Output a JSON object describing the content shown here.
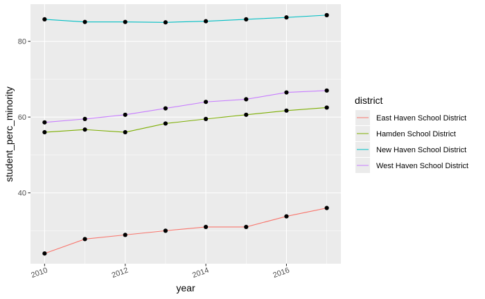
{
  "chart_data": {
    "type": "line",
    "title": "",
    "xlabel": "year",
    "ylabel": "student_perc_minority",
    "x": [
      2010,
      2011,
      2012,
      2013,
      2014,
      2015,
      2016,
      2017
    ],
    "x_ticks": [
      2010,
      2012,
      2014,
      2016
    ],
    "x_tick_labels": [
      "2010",
      "2012",
      "2014",
      "2016"
    ],
    "y_ticks": [
      40,
      60,
      80
    ],
    "y_tick_labels": [
      "40",
      "60",
      "80"
    ],
    "xlim": [
      2009.65,
      2017.35
    ],
    "ylim": [
      21.3,
      89.8
    ],
    "grid": true,
    "legend": {
      "title": "district",
      "position": "right"
    },
    "series": [
      {
        "name": "East Haven School District",
        "color": "#F8766D",
        "values": [
          24.0,
          27.8,
          28.9,
          30.0,
          31.0,
          31.0,
          33.8,
          36.0
        ]
      },
      {
        "name": "Hamden School District",
        "color": "#7CAE00",
        "values": [
          56.0,
          56.7,
          56.0,
          58.3,
          59.5,
          60.6,
          61.7,
          62.5
        ]
      },
      {
        "name": "New Haven School District",
        "color": "#00BFC4",
        "values": [
          85.8,
          85.1,
          85.1,
          85.0,
          85.3,
          85.8,
          86.3,
          86.9
        ]
      },
      {
        "name": "West Haven School District",
        "color": "#C77CFF",
        "values": [
          58.6,
          59.5,
          60.6,
          62.3,
          64.0,
          64.7,
          66.5,
          67.0
        ]
      }
    ]
  }
}
